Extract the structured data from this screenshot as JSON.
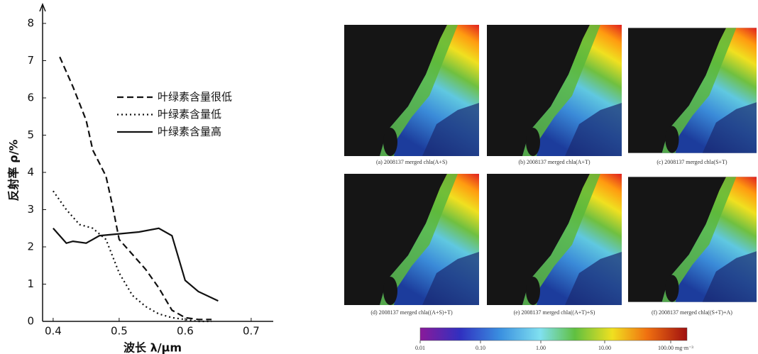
{
  "chart_data": {
    "type": "line",
    "x_label": "波长 λ/μm",
    "y_label": "反射率 ρ/%",
    "xlim": [
      0.384,
      0.72
    ],
    "ylim": [
      0,
      8.4
    ],
    "xticks": [
      0.4,
      0.5,
      0.6,
      0.7
    ],
    "yticks": [
      0,
      1,
      2,
      3,
      4,
      5,
      6,
      7,
      8
    ],
    "series": [
      {
        "name": "叶绿素含量很低",
        "color": "#111111",
        "dash": "dashed",
        "x": [
          0.41,
          0.43,
          0.45,
          0.46,
          0.48,
          0.49,
          0.5,
          0.52,
          0.54,
          0.56,
          0.58,
          0.6,
          0.62,
          0.64
        ],
        "values": [
          7.1,
          6.3,
          5.4,
          4.6,
          3.9,
          3.1,
          2.2,
          1.8,
          1.4,
          0.9,
          0.3,
          0.1,
          0.05,
          0.05
        ]
      },
      {
        "name": "叶绿素含量低",
        "color": "#111111",
        "dash": "dotted",
        "x": [
          0.4,
          0.42,
          0.44,
          0.46,
          0.48,
          0.5,
          0.52,
          0.54,
          0.56,
          0.58,
          0.6,
          0.62,
          0.64
        ],
        "values": [
          3.5,
          3.0,
          2.6,
          2.5,
          2.2,
          1.3,
          0.7,
          0.4,
          0.2,
          0.1,
          0.05,
          0,
          0
        ]
      },
      {
        "name": "叶绿素含量高",
        "color": "#111111",
        "dash": "solid",
        "x": [
          0.4,
          0.42,
          0.43,
          0.45,
          0.47,
          0.5,
          0.53,
          0.56,
          0.58,
          0.6,
          0.62,
          0.65
        ],
        "values": [
          2.5,
          2.1,
          2.15,
          2.1,
          2.3,
          2.35,
          2.4,
          2.5,
          2.3,
          1.1,
          0.8,
          0.55
        ]
      }
    ]
  },
  "panels": {
    "captions": [
      "(a) 2008137 merged chla(A+S)",
      "(b) 2008137 merged chla(A+T)",
      "(c) 2008137 merged chla(S+T)",
      "(d) 2008137 merged chla((A+S)+T)",
      "(e) 2008137 merged chla((A+T)+S)",
      "(f) 2008137 merged chla((S+T)+A)"
    ],
    "colorbar_labels": [
      "0.01",
      "0.10",
      "1.00",
      "10.00",
      "100.00 mg·m⁻³"
    ]
  }
}
